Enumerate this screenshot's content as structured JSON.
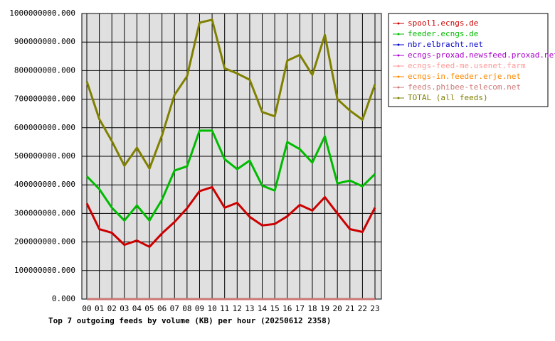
{
  "chart_data": {
    "type": "line",
    "title": "Top 7 outgoing feeds by volume (KB) per hour (20250612 2358)",
    "categories": [
      "00",
      "01",
      "02",
      "03",
      "04",
      "05",
      "06",
      "07",
      "08",
      "09",
      "10",
      "11",
      "12",
      "13",
      "14",
      "15",
      "16",
      "17",
      "18",
      "19",
      "20",
      "21",
      "22",
      "23"
    ],
    "ylim": [
      0,
      1000000000
    ],
    "yticks": [
      {
        "value": 0,
        "label": "0.000"
      },
      {
        "value": 100000000,
        "label": "100000000.000"
      },
      {
        "value": 200000000,
        "label": "200000000.000"
      },
      {
        "value": 300000000,
        "label": "300000000.000"
      },
      {
        "value": 400000000,
        "label": "400000000.000"
      },
      {
        "value": 500000000,
        "label": "500000000.000"
      },
      {
        "value": 600000000,
        "label": "600000000.000"
      },
      {
        "value": 700000000,
        "label": "700000000.000"
      },
      {
        "value": 800000000,
        "label": "800000000.000"
      },
      {
        "value": 900000000,
        "label": "900000000.000"
      },
      {
        "value": 1000000000,
        "label": "1000000000.000"
      }
    ],
    "grid": true,
    "legend": "right",
    "series": [
      {
        "name": "spool1.ecngs.de",
        "color": "#cc0000",
        "values": [
          335000000,
          245000000,
          232000000,
          190000000,
          205000000,
          183000000,
          230000000,
          270000000,
          318000000,
          378000000,
          392000000,
          320000000,
          337000000,
          288000000,
          258000000,
          263000000,
          290000000,
          330000000,
          310000000,
          357000000,
          300000000,
          245000000,
          235000000,
          320000000
        ]
      },
      {
        "name": "feeder.ecngs.de",
        "color": "#00bb00",
        "values": [
          430000000,
          385000000,
          320000000,
          275000000,
          328000000,
          275000000,
          348000000,
          450000000,
          465000000,
          590000000,
          590000000,
          490000000,
          455000000,
          485000000,
          397000000,
          380000000,
          550000000,
          525000000,
          478000000,
          570000000,
          405000000,
          415000000,
          395000000,
          438000000
        ]
      },
      {
        "name": "nbr.elbracht.net",
        "color": "#0000cc",
        "values": [
          0,
          0,
          0,
          0,
          0,
          0,
          0,
          0,
          0,
          0,
          0,
          0,
          0,
          0,
          0,
          0,
          0,
          0,
          0,
          0,
          0,
          0,
          0,
          0
        ]
      },
      {
        "name": "ecngs-proxad.newsfeed.proxad.net",
        "color": "#aa00cc",
        "values": [
          0,
          0,
          0,
          0,
          0,
          0,
          0,
          0,
          0,
          0,
          0,
          0,
          0,
          0,
          0,
          0,
          0,
          0,
          0,
          0,
          0,
          0,
          0,
          0
        ]
      },
      {
        "name": "ecngs-feed-me.usenet.farm",
        "color": "#ff9999",
        "values": [
          0,
          0,
          0,
          0,
          0,
          0,
          0,
          0,
          0,
          0,
          0,
          0,
          0,
          0,
          0,
          0,
          0,
          0,
          0,
          0,
          0,
          0,
          0,
          0
        ]
      },
      {
        "name": "ecngs-in.feeder.erje.net",
        "color": "#ff8800",
        "values": [
          0,
          0,
          0,
          0,
          0,
          0,
          0,
          0,
          0,
          0,
          0,
          0,
          0,
          0,
          0,
          0,
          0,
          0,
          0,
          0,
          0,
          0,
          0,
          0
        ]
      },
      {
        "name": "feeds.phibee-telecom.net",
        "color": "#cc7777",
        "values": [
          0,
          0,
          0,
          0,
          0,
          0,
          0,
          0,
          0,
          0,
          0,
          0,
          0,
          0,
          0,
          0,
          0,
          0,
          0,
          0,
          0,
          0,
          0,
          0
        ]
      },
      {
        "name": "TOTAL (all feeds)",
        "color": "#808000",
        "values": [
          762000000,
          630000000,
          553000000,
          467000000,
          530000000,
          457000000,
          573000000,
          715000000,
          780000000,
          968000000,
          978000000,
          808000000,
          790000000,
          768000000,
          655000000,
          640000000,
          835000000,
          855000000,
          785000000,
          925000000,
          700000000,
          660000000,
          628000000,
          752000000
        ]
      }
    ]
  }
}
